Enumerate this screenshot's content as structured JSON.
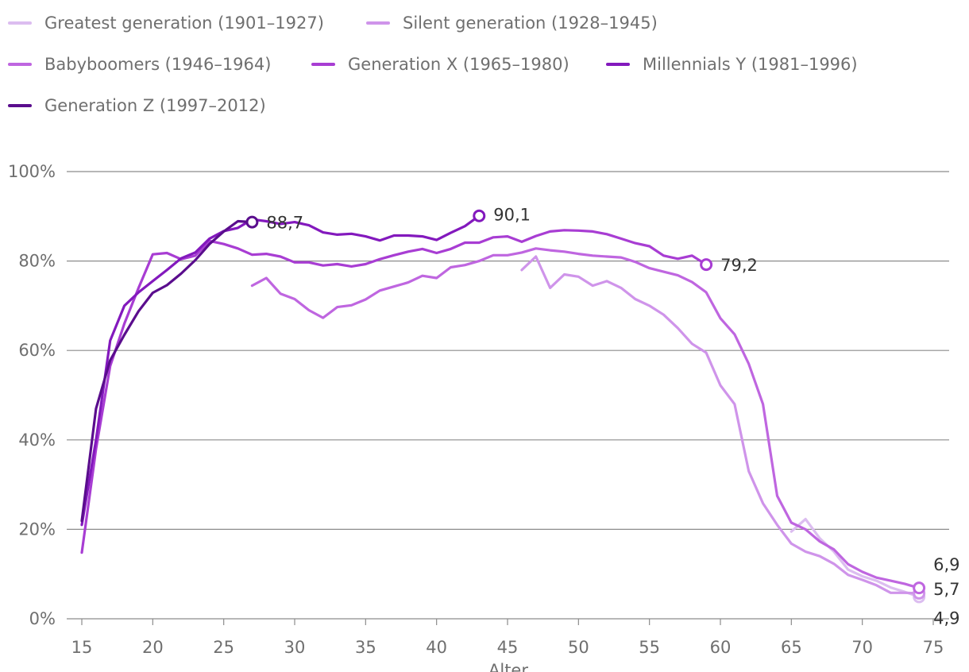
{
  "chart_data": {
    "type": "line",
    "title": "",
    "xlabel": "Alter",
    "ylabel": "",
    "xlim": [
      15,
      75
    ],
    "ylim": [
      0,
      100
    ],
    "x_ticks": [
      "15",
      "20",
      "25",
      "30",
      "35",
      "40",
      "45",
      "50",
      "55",
      "60",
      "65",
      "70",
      "75"
    ],
    "y_ticks": [
      "0%",
      "20%",
      "40%",
      "60%",
      "80%",
      "100%"
    ],
    "grid": true,
    "legend_position": "top-left",
    "series": [
      {
        "name": "Greatest generation (1901–1927)",
        "color": "#dcbdf0",
        "x": [
          65,
          66,
          67,
          68,
          69,
          70,
          71,
          72,
          73,
          74
        ],
        "values": [
          19.5,
          22.3,
          18,
          15,
          11,
          9.5,
          8.5,
          7,
          6,
          4.9
        ],
        "end_label": "4,9"
      },
      {
        "name": "Silent generation (1928–1945)",
        "color": "#cf94ea",
        "x": [
          46,
          47,
          48,
          49,
          50,
          51,
          52,
          53,
          54,
          55,
          56,
          57,
          58,
          59,
          60,
          61,
          62,
          63,
          64,
          65,
          66,
          67,
          68,
          69,
          70,
          71,
          72,
          73,
          74
        ],
        "values": [
          78,
          81,
          74,
          77,
          76.5,
          74.5,
          75.5,
          74,
          71.5,
          70,
          68,
          65,
          61.5,
          59.5,
          52.2,
          48,
          33,
          25.8,
          21,
          16.8,
          15,
          14,
          12.3,
          9.8,
          8.7,
          7.5,
          5.8,
          5.8,
          5.7
        ],
        "end_label": "5,7"
      },
      {
        "name": "Babyboomers (1946–1964)",
        "color": "#bf66e0",
        "x": [
          27,
          28,
          29,
          30,
          31,
          32,
          33,
          34,
          35,
          36,
          37,
          38,
          39,
          40,
          41,
          42,
          43,
          44,
          45,
          46,
          47,
          48,
          49,
          50,
          51,
          52,
          53,
          54,
          55,
          56,
          57,
          58,
          59,
          60,
          61,
          62,
          63,
          64,
          65,
          66,
          67,
          68,
          69,
          70,
          71,
          72,
          73,
          74
        ],
        "values": [
          74.5,
          76.2,
          72.7,
          71.5,
          69,
          67.3,
          69.7,
          70.1,
          71.4,
          73.4,
          74.3,
          75.2,
          76.7,
          76.2,
          78.6,
          79.1,
          80,
          81.3,
          81.3,
          81.9,
          82.8,
          82.4,
          82.1,
          81.6,
          81.2,
          81,
          80.8,
          79.8,
          78.4,
          77.6,
          76.8,
          75.3,
          73,
          67.2,
          63.6,
          57,
          48,
          27.5,
          21.5,
          20,
          17.3,
          15.5,
          12.2,
          10.5,
          9.2,
          8.5,
          7.8,
          6.9
        ],
        "end_label": "6,9"
      },
      {
        "name": "Generation X (1965–1980)",
        "color": "#a83dd3",
        "x": [
          15,
          16,
          17,
          18,
          19,
          20,
          21,
          22,
          23,
          24,
          25,
          26,
          27,
          28,
          29,
          30,
          31,
          32,
          33,
          34,
          35,
          36,
          37,
          38,
          39,
          40,
          41,
          42,
          43,
          44,
          45,
          46,
          47,
          48,
          49,
          50,
          51,
          52,
          53,
          54,
          55,
          56,
          57,
          58,
          59
        ],
        "values": [
          14.8,
          38,
          56.5,
          66,
          74,
          81.5,
          81.8,
          80.4,
          81.2,
          84.5,
          83.8,
          82.8,
          81.4,
          81.6,
          81,
          79.7,
          79.7,
          79,
          79.3,
          78.8,
          79.3,
          80.4,
          81.3,
          82.1,
          82.7,
          81.8,
          82.7,
          84.1,
          84.1,
          85.3,
          85.5,
          84.3,
          85.6,
          86.6,
          86.9,
          86.8,
          86.6,
          86,
          85,
          84,
          83.3,
          81.2,
          80.5,
          81.2,
          79.2
        ],
        "end_label": "79,2"
      },
      {
        "name": "Millennials Y (1981–1996)",
        "color": "#8319bd",
        "x": [
          15,
          16,
          17,
          18,
          19,
          20,
          21,
          22,
          23,
          24,
          25,
          26,
          27,
          28,
          29,
          30,
          31,
          32,
          33,
          34,
          35,
          36,
          37,
          38,
          39,
          40,
          41,
          42,
          43
        ],
        "values": [
          21,
          40,
          62.2,
          70,
          73,
          75.5,
          78,
          80.6,
          81.9,
          85,
          86.7,
          87.4,
          89.3,
          88.9,
          88.3,
          88.7,
          88,
          86.4,
          85.9,
          86.1,
          85.5,
          84.6,
          85.7,
          85.7,
          85.5,
          84.7,
          86.3,
          87.8,
          90.1
        ],
        "end_label": "90,1"
      },
      {
        "name": "Generation Z (1997–2012)",
        "color": "#5a0d8d",
        "x": [
          15,
          16,
          17,
          18,
          19,
          20,
          21,
          22,
          23,
          24,
          25,
          26,
          27
        ],
        "values": [
          21.9,
          47,
          57.8,
          63.5,
          68.8,
          72.9,
          74.6,
          77.2,
          80.2,
          83.8,
          86.6,
          88.9,
          88.7
        ],
        "end_label": "88,7"
      }
    ]
  }
}
